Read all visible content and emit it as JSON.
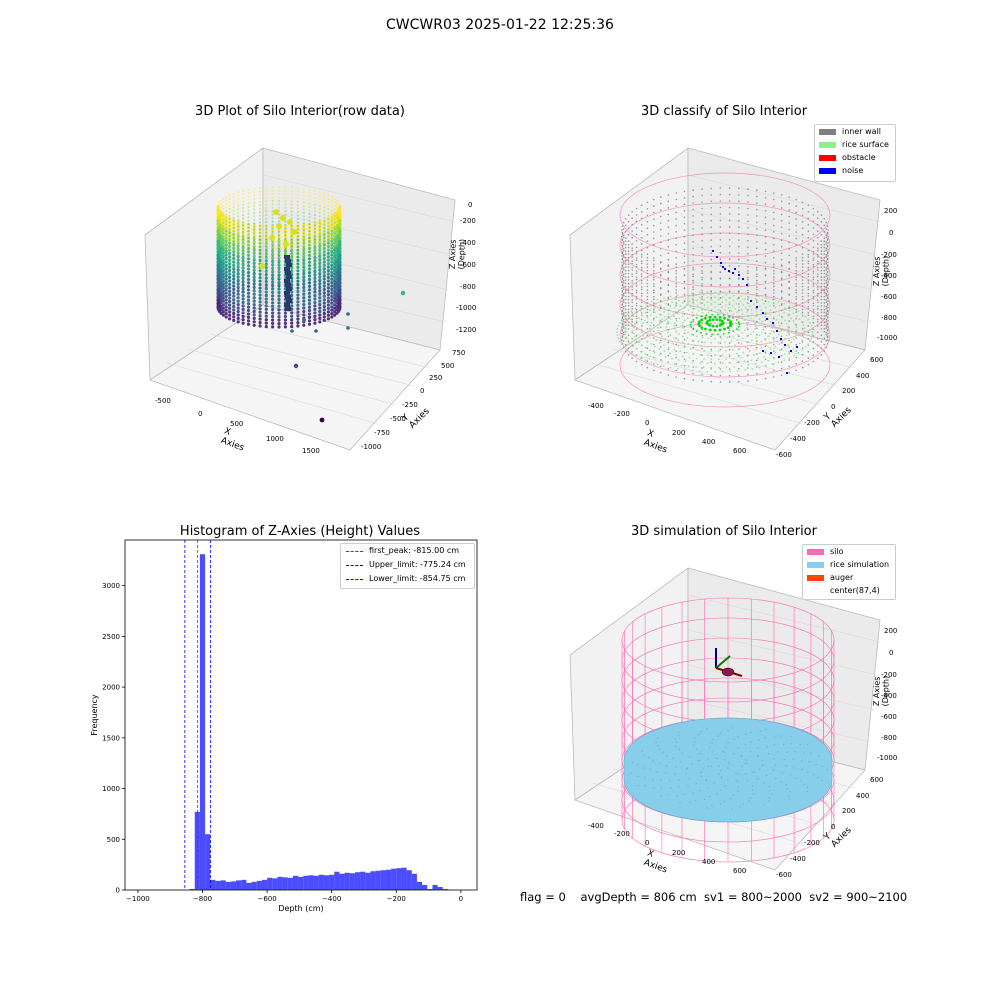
{
  "figure": {
    "title": "CWCWR03 2025-01-22 12:25:36",
    "footer": "flag = 0    avgDepth = 806 cm  sv1 = 800~2000  sv2 = 900~2100"
  },
  "colors": {
    "inner_wall": "#808080",
    "rice_surface": "#90ee90",
    "obstacle": "#ff0000",
    "noise": "#0000ff",
    "silo": "#ff69b4",
    "rice_simulation": "#87ceeb",
    "auger": "#ff4500",
    "hist_bar": "#0000ff",
    "first_peak_line": "#ff0000",
    "limit_line": "#0000ff"
  },
  "chart_data": [
    {
      "type": "scatter",
      "title": "3D Plot of Silo Interior(row data)",
      "xlabel": "X Axies",
      "ylabel": "Y Axies",
      "zlabel": "Z Axies (Depth)",
      "x_ticks": [
        "-500",
        "0",
        "500",
        "1000",
        "1500"
      ],
      "y_ticks": [
        "750",
        "500",
        "250",
        "0",
        "-250",
        "-500",
        "-750",
        "-1000"
      ],
      "z_ticks": [
        "0",
        "-200",
        "-400",
        "-600",
        "-800",
        "-1000",
        "-1200"
      ],
      "colormap": "viridis"
    },
    {
      "type": "scatter",
      "title": "3D classify of Silo Interior",
      "xlabel": "X Axies",
      "ylabel": "Y Axies",
      "zlabel": "Z Axies (Depth)",
      "x_ticks": [
        "-400",
        "-200",
        "0",
        "200",
        "400",
        "600"
      ],
      "y_ticks": [
        "600",
        "400",
        "200",
        "0",
        "-200",
        "-400",
        "-600"
      ],
      "z_ticks": [
        "200",
        "0",
        "-200",
        "-400",
        "-600",
        "-800",
        "-1000"
      ],
      "legend": [
        "inner wall",
        "rice surface",
        "obstacle",
        "noise"
      ],
      "legend_position": "top-right"
    },
    {
      "type": "bar",
      "title": "Histogram of Z-Axies (Height) Values",
      "xlabel": "Depth (cm)",
      "ylabel": "Frequency",
      "xlim": [
        -1040,
        50
      ],
      "ylim": [
        0,
        3450
      ],
      "x_ticks": [
        -1000,
        -800,
        -600,
        -400,
        -200,
        0
      ],
      "y_ticks": [
        0,
        500,
        1000,
        1500,
        2000,
        2500,
        3000
      ],
      "bin_width": 16,
      "bin_starts": [
        -840,
        -824,
        -808,
        -792,
        -776,
        -760,
        -744,
        -728,
        -712,
        -696,
        -680,
        -664,
        -648,
        -632,
        -616,
        -600,
        -584,
        -568,
        -552,
        -536,
        -520,
        -504,
        -488,
        -472,
        -456,
        -440,
        -424,
        -408,
        -392,
        -376,
        -360,
        -344,
        -328,
        -312,
        -296,
        -280,
        -264,
        -248,
        -232,
        -216,
        -200,
        -184,
        -168,
        -152,
        -136,
        -120,
        -104,
        -88,
        -72,
        -56,
        -40,
        -24,
        -8
      ],
      "values": [
        10,
        770,
        3310,
        550,
        100,
        90,
        95,
        80,
        85,
        95,
        100,
        70,
        80,
        90,
        100,
        120,
        115,
        130,
        125,
        120,
        140,
        130,
        140,
        145,
        140,
        150,
        145,
        150,
        180,
        160,
        170,
        165,
        175,
        180,
        170,
        185,
        190,
        195,
        200,
        210,
        215,
        220,
        195,
        160,
        80,
        50,
        10,
        50,
        30,
        10,
        5,
        0,
        0
      ],
      "vlines": [
        {
          "name": "first_peak: -815.00 cm",
          "x": -815.0,
          "color": "red"
        },
        {
          "name": "Upper_limit: -775.24 cm",
          "x": -775.24,
          "color": "blue"
        },
        {
          "name": "Lower_limit: -854.75 cm",
          "x": -854.75,
          "color": "blue"
        }
      ],
      "legend_position": "top-right"
    },
    {
      "type": "scatter",
      "title": "3D simulation of Silo Interior",
      "xlabel": "X Axies",
      "ylabel": "Y Axies",
      "zlabel": "Z Axies (Depth)",
      "x_ticks": [
        "-400",
        "-200",
        "0",
        "200",
        "400",
        "600"
      ],
      "y_ticks": [
        "600",
        "400",
        "200",
        "0",
        "-200",
        "-400",
        "-600"
      ],
      "z_ticks": [
        "200",
        "0",
        "-200",
        "-400",
        "-600",
        "-800",
        "-1000"
      ],
      "legend": [
        "silo",
        "rice simulation",
        "auger",
        "center(87,4)"
      ],
      "legend_position": "top-right"
    }
  ]
}
